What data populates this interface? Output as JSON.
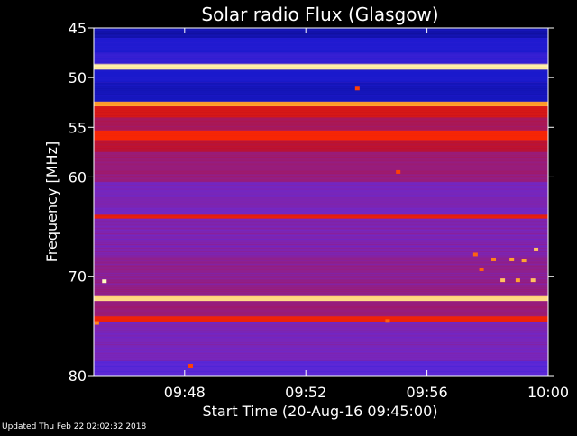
{
  "chart_data": {
    "type": "heatmap",
    "title": "Solar radio Flux (Glasgow)",
    "xlabel": "Start Time (20-Aug-16 09:45:00)",
    "ylabel": "Frequency [MHz]",
    "x_ticks": [
      "09:48",
      "09:52",
      "09:56",
      "10:00"
    ],
    "x_tick_minutes": [
      3,
      7,
      11,
      15
    ],
    "xlim_minutes": [
      0,
      15
    ],
    "y_ticks": [
      45,
      50,
      55,
      60,
      70,
      80
    ],
    "ylim_mhz": [
      45,
      80
    ],
    "colormap": [
      "#000050",
      "#1a1ad0",
      "#6a2ad8",
      "#c41020",
      "#ff2a00",
      "#ff9a20",
      "#ffffc0"
    ],
    "background_level": 0.38,
    "bands": [
      {
        "f_min": 45.0,
        "f_max": 46.0,
        "level": 0.12
      },
      {
        "f_min": 46.0,
        "f_max": 47.5,
        "level": 0.18
      },
      {
        "f_min": 47.5,
        "f_max": 48.6,
        "level": 0.22
      },
      {
        "f_min": 48.6,
        "f_max": 49.2,
        "level": 0.97
      },
      {
        "f_min": 49.2,
        "f_max": 50.5,
        "level": 0.16
      },
      {
        "f_min": 50.5,
        "f_max": 52.4,
        "level": 0.14
      },
      {
        "f_min": 52.4,
        "f_max": 52.9,
        "level": 0.85
      },
      {
        "f_min": 52.9,
        "f_max": 54.0,
        "level": 0.55
      },
      {
        "f_min": 54.0,
        "f_max": 55.3,
        "level": 0.45
      },
      {
        "f_min": 55.3,
        "f_max": 56.3,
        "level": 0.64
      },
      {
        "f_min": 56.3,
        "f_max": 57.5,
        "level": 0.48
      },
      {
        "f_min": 57.5,
        "f_max": 60.5,
        "level": 0.42
      },
      {
        "f_min": 60.5,
        "f_max": 63.8,
        "level": 0.36
      },
      {
        "f_min": 63.8,
        "f_max": 64.2,
        "level": 0.6
      },
      {
        "f_min": 64.2,
        "f_max": 68.0,
        "level": 0.37
      },
      {
        "f_min": 68.0,
        "f_max": 72.0,
        "level": 0.4
      },
      {
        "f_min": 72.0,
        "f_max": 72.5,
        "level": 0.93
      },
      {
        "f_min": 72.5,
        "f_max": 74.0,
        "level": 0.42
      },
      {
        "f_min": 74.0,
        "f_max": 74.6,
        "level": 0.62
      },
      {
        "f_min": 74.6,
        "f_max": 78.5,
        "level": 0.36
      },
      {
        "f_min": 78.5,
        "f_max": 80.0,
        "level": 0.3
      }
    ],
    "hot_spots": [
      {
        "t": 0.35,
        "f": 70.5,
        "level": 1.0
      },
      {
        "t": 0.1,
        "f": 74.7,
        "level": 0.8
      },
      {
        "t": 3.2,
        "f": 79.0,
        "level": 0.7
      },
      {
        "t": 8.7,
        "f": 51.1,
        "level": 0.7
      },
      {
        "t": 10.05,
        "f": 59.5,
        "level": 0.7
      },
      {
        "t": 9.7,
        "f": 74.5,
        "level": 0.75
      },
      {
        "t": 13.5,
        "f": 70.4,
        "level": 0.9
      },
      {
        "t": 14.0,
        "f": 70.4,
        "level": 0.85
      },
      {
        "t": 14.5,
        "f": 70.4,
        "level": 0.9
      },
      {
        "t": 14.6,
        "f": 67.3,
        "level": 0.9
      },
      {
        "t": 14.2,
        "f": 68.4,
        "level": 0.85
      },
      {
        "t": 13.8,
        "f": 68.3,
        "level": 0.85
      },
      {
        "t": 13.2,
        "f": 68.3,
        "level": 0.8
      },
      {
        "t": 12.6,
        "f": 67.8,
        "level": 0.75
      },
      {
        "t": 12.8,
        "f": 69.3,
        "level": 0.75
      }
    ]
  },
  "footer": {
    "updated": "Updated Thu Feb 22 02:02:32 2018"
  }
}
